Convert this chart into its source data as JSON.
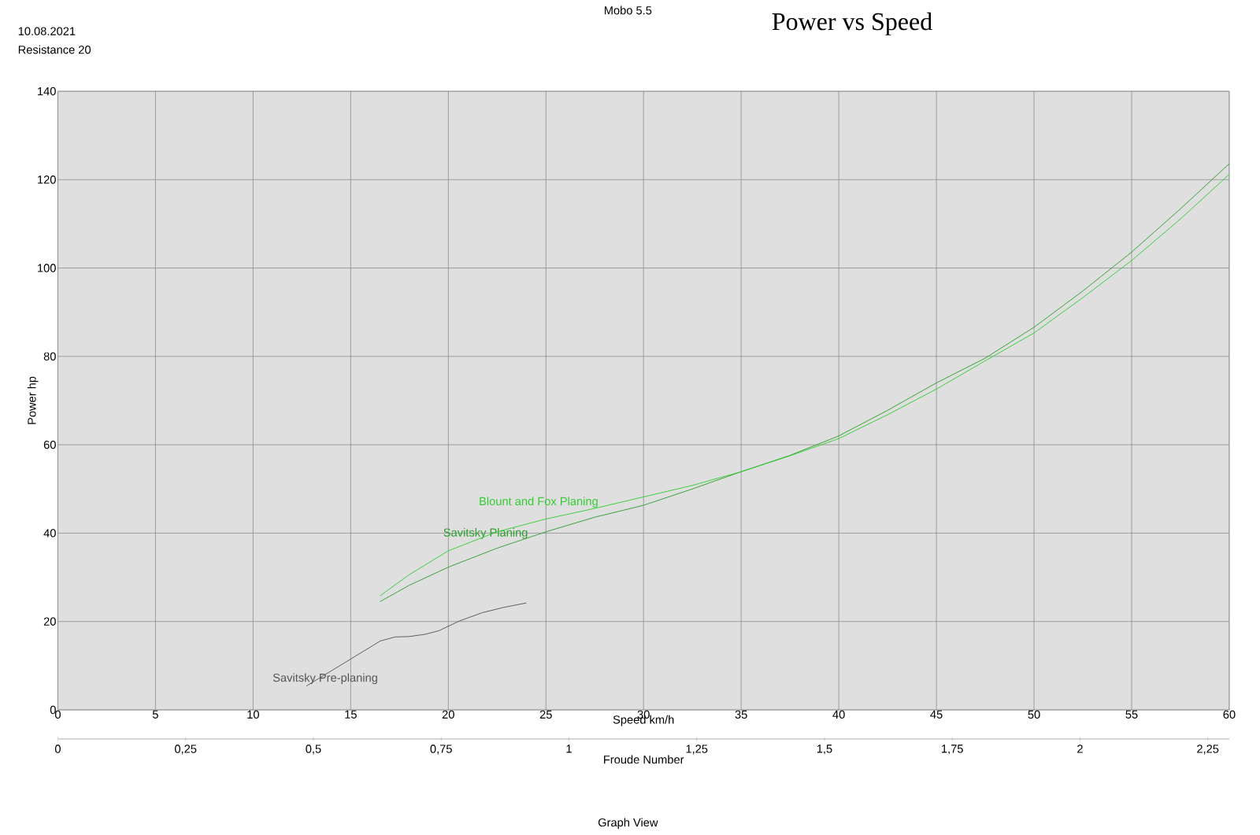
{
  "chart_data": {
    "type": "line",
    "title": "Power vs Speed",
    "xlabel": "Speed  km/h",
    "ylabel": "Power  hp",
    "x2label": "Froude Number",
    "annotations": [
      "10.08.2021",
      "Resistance 20",
      "Mobo 5.5",
      "Graph View"
    ],
    "xlim": [
      0,
      60
    ],
    "xticks": [
      0,
      5,
      10,
      15,
      20,
      25,
      30,
      35,
      40,
      45,
      50,
      55,
      60
    ],
    "ylim": [
      0,
      140
    ],
    "yticks": [
      0,
      20,
      40,
      60,
      80,
      100,
      120,
      140
    ],
    "x2lim": [
      0,
      2.292
    ],
    "x2ticks": [
      0,
      {
        "value": 0.25,
        "label": "0,25"
      },
      {
        "value": 0.5,
        "label": "0,5"
      },
      {
        "value": 0.75,
        "label": "0,75"
      },
      1,
      {
        "value": 1.25,
        "label": "1,25"
      },
      {
        "value": 1.5,
        "label": "1,5"
      },
      {
        "value": 1.75,
        "label": "1,75"
      },
      2,
      {
        "value": 2.25,
        "label": "2,25"
      }
    ],
    "grid": true,
    "series": [
      {
        "name": "Savitsky Pre-planing",
        "color": "#555555",
        "x": [
          12.73,
          15.0,
          16.52,
          17.27,
          18.0,
          18.81,
          19.51,
          20.56,
          21.74,
          22.84,
          24.0
        ],
        "values": [
          5.4,
          11.5,
          15.6,
          16.5,
          16.6,
          17.1,
          17.9,
          20.1,
          22.0,
          23.2,
          24.2
        ]
      },
      {
        "name": "Savitsky Planing",
        "color": "#2e9e2e",
        "x": [
          16.5,
          18,
          20,
          22.5,
          25,
          27.5,
          30,
          32.5,
          35,
          37.5,
          40,
          42.5,
          45,
          47.5,
          50,
          52.5,
          55,
          57.5,
          60
        ],
        "values": [
          24.5,
          28.2,
          32.3,
          36.6,
          40.3,
          43.6,
          46.3,
          50.0,
          53.9,
          57.6,
          62.0,
          67.8,
          74.0,
          79.6,
          86.6,
          94.8,
          103.6,
          113.4,
          123.6
        ]
      },
      {
        "name": "Blount and Fox Planing",
        "color": "#33cc33",
        "x": [
          16.5,
          18,
          20,
          22.5,
          25,
          27.5,
          30,
          32.5,
          35,
          37.5,
          40,
          42.5,
          45,
          47.5,
          50,
          52.5,
          55,
          57.5,
          60
        ],
        "values": [
          25.8,
          30.6,
          36.0,
          40.3,
          43.2,
          45.6,
          48.2,
          50.8,
          53.9,
          57.5,
          61.4,
          66.8,
          72.6,
          79.0,
          85.3,
          93.3,
          101.7,
          111.1,
          121.2
        ]
      }
    ]
  }
}
